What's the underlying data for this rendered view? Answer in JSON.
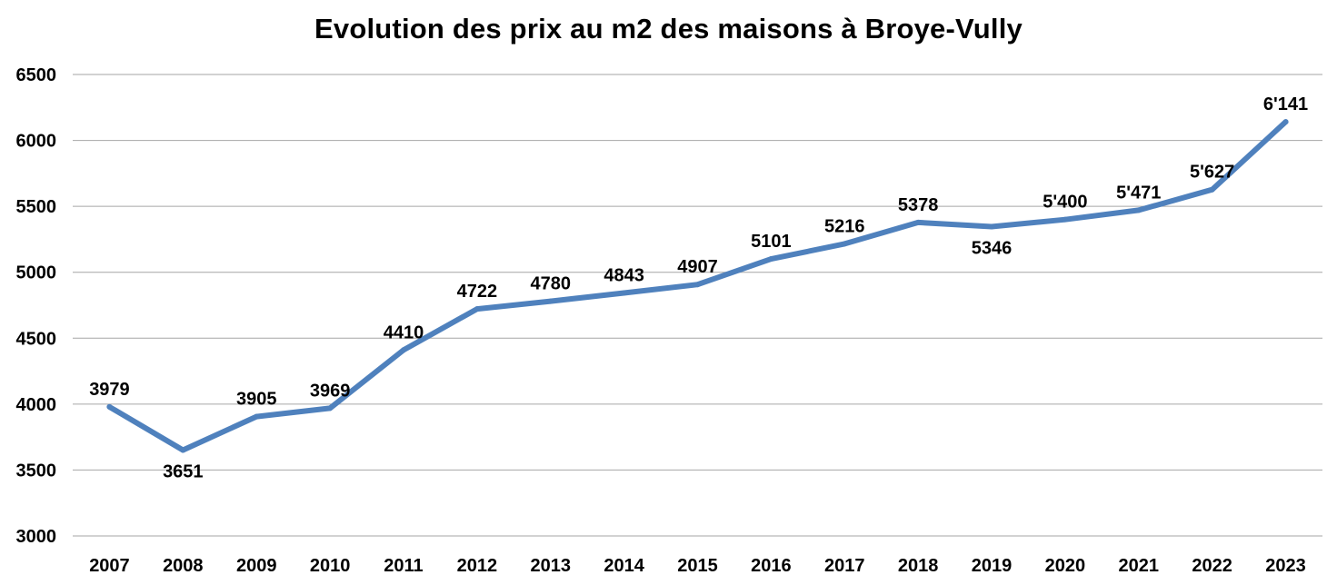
{
  "chart_data": {
    "type": "line",
    "title": "Evolution des prix au m2 des maisons à Broye-Vully",
    "xlabel": "",
    "ylabel": "",
    "categories": [
      "2007",
      "2008",
      "2009",
      "2010",
      "2011",
      "2012",
      "2013",
      "2014",
      "2015",
      "2016",
      "2017",
      "2018",
      "2019",
      "2020",
      "2021",
      "2022",
      "2023"
    ],
    "series": [
      {
        "values": [
          3979,
          3651,
          3905,
          3969,
          4410,
          4722,
          4780,
          4843,
          4907,
          5101,
          5216,
          5378,
          5346,
          5400,
          5471,
          5627,
          6141
        ],
        "data_labels": [
          "3979",
          "3651",
          "3905",
          "3969",
          "4410",
          "4722",
          "4780",
          "4843",
          "4907",
          "5101",
          "5216",
          "5378",
          "5346",
          "5'400",
          "5'471",
          "5'627",
          "6'141"
        ],
        "label_positions": [
          "above",
          "below",
          "above",
          "above",
          "above",
          "above",
          "above",
          "above",
          "above",
          "above",
          "above",
          "above",
          "below",
          "above",
          "above",
          "above",
          "above"
        ]
      }
    ],
    "ylim": [
      3000,
      6500
    ],
    "yticks": [
      "3000",
      "3500",
      "4000",
      "4500",
      "5000",
      "5500",
      "6000",
      "6500"
    ],
    "grid": true,
    "legend": "none",
    "line_color": "#4F81BD",
    "grid_color": "#A6A6A6"
  }
}
